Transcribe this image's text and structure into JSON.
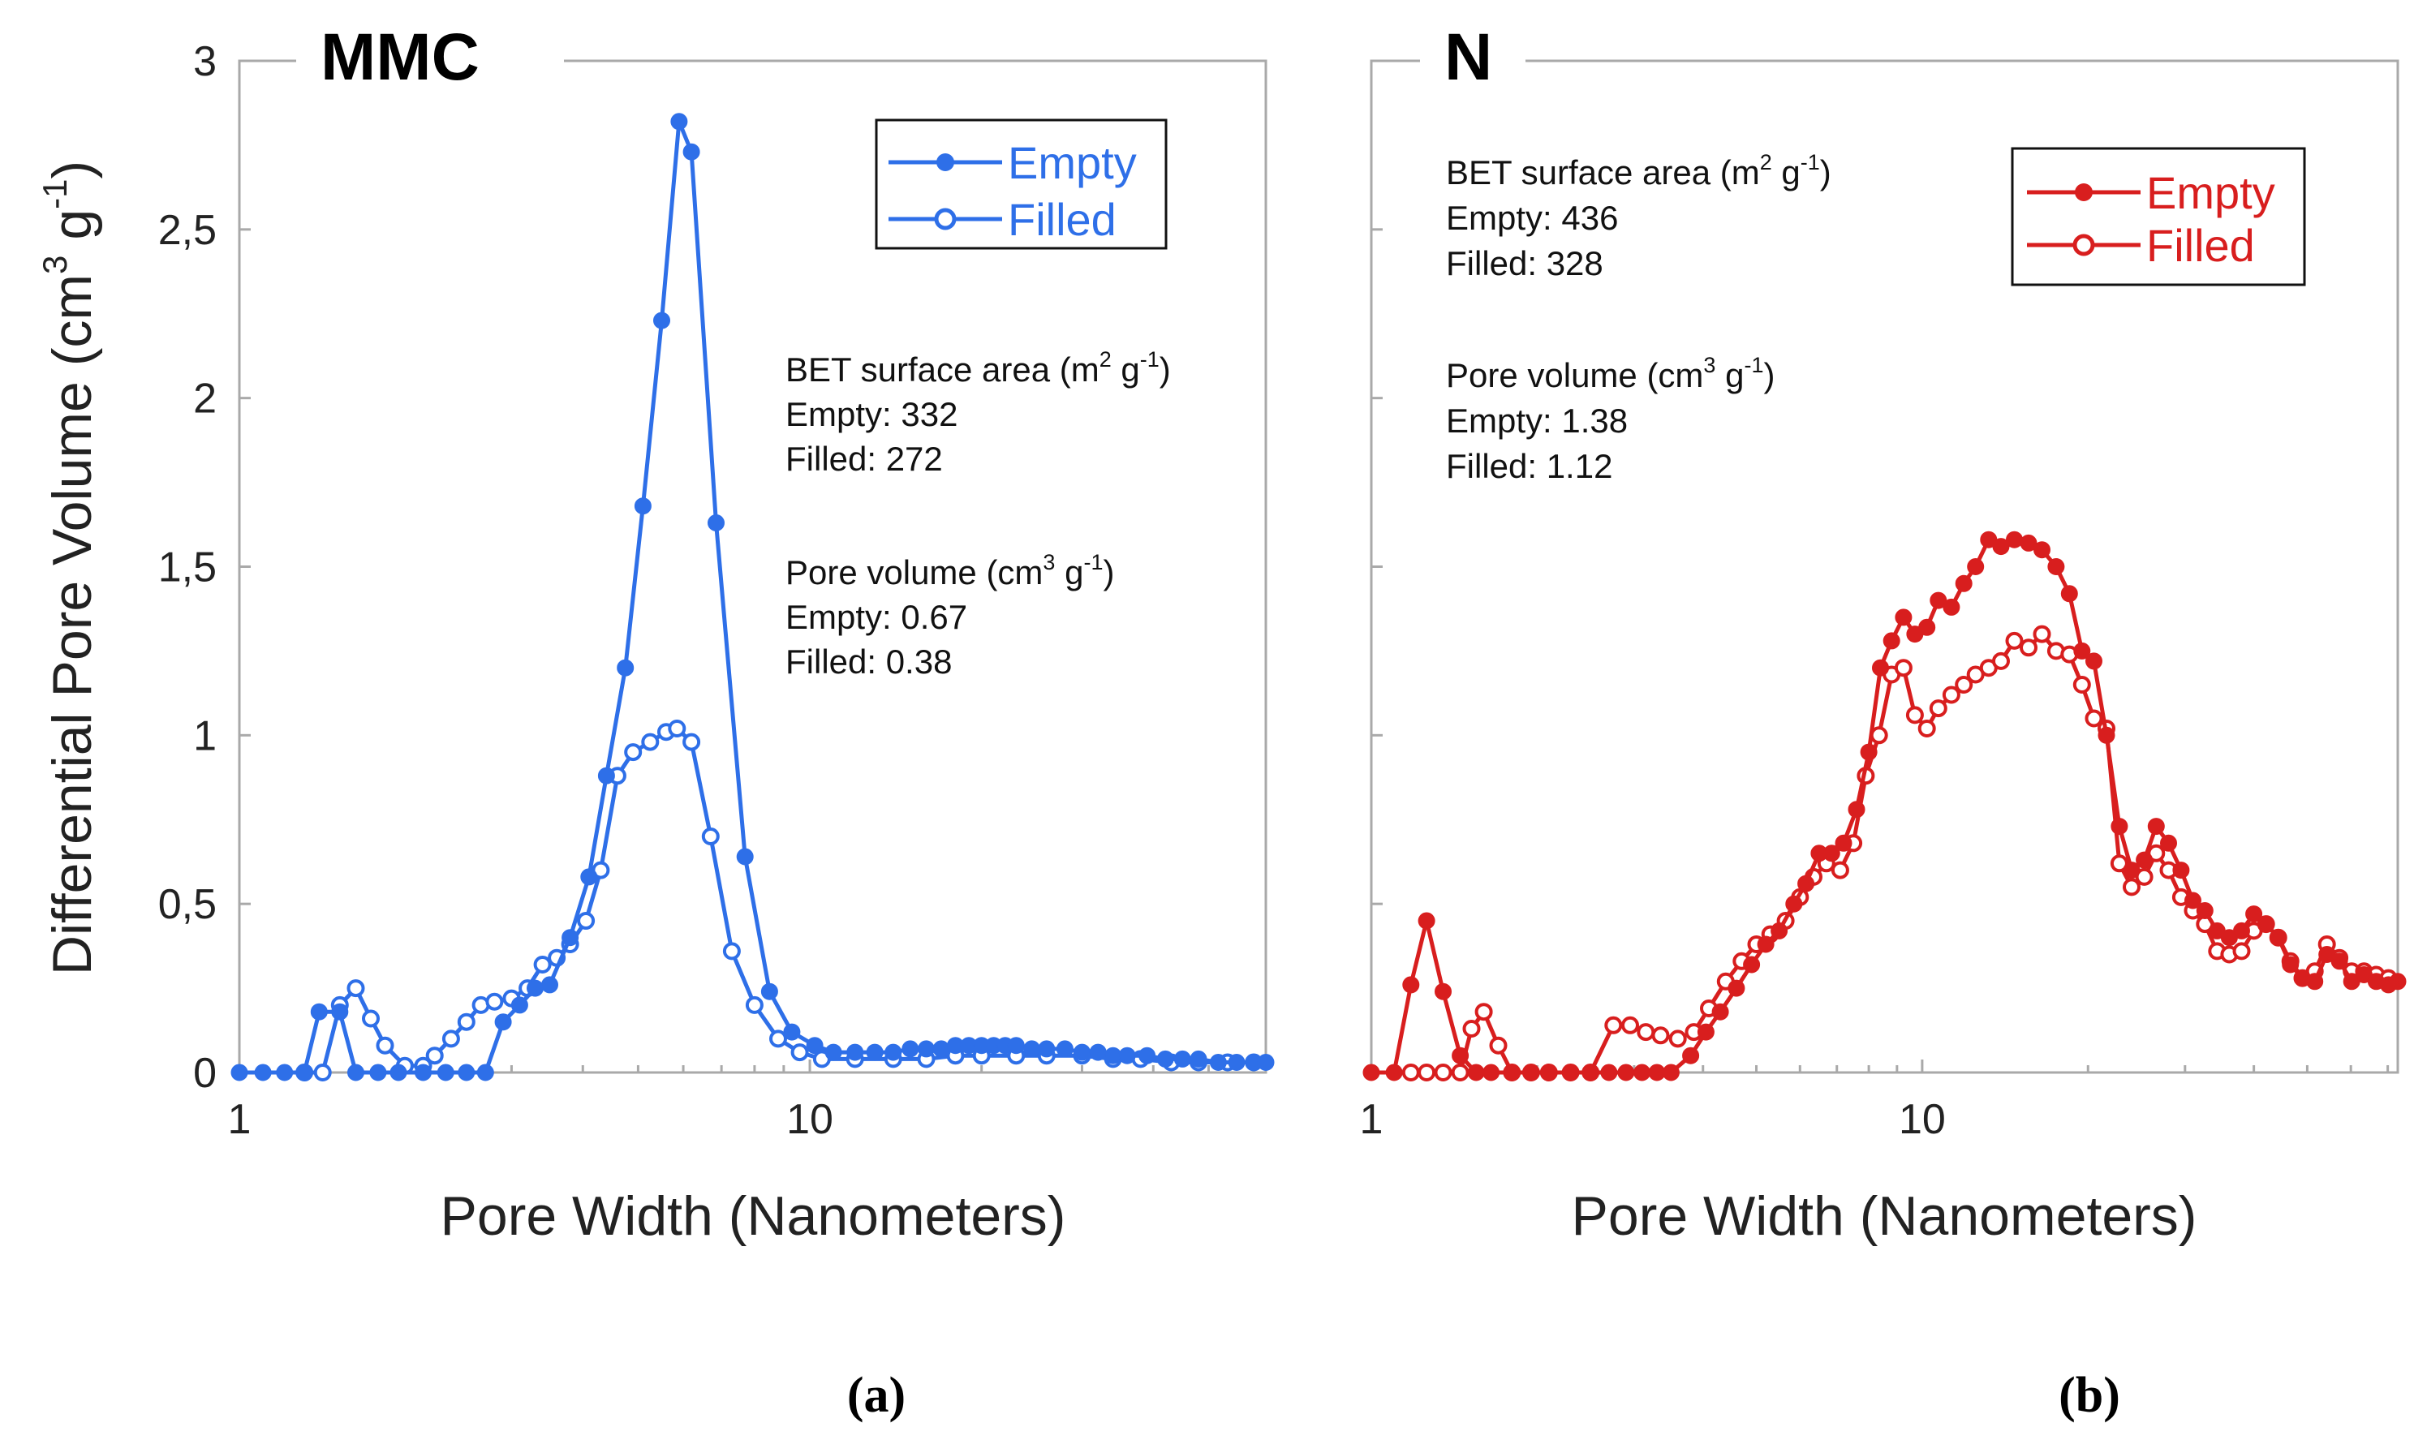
{
  "y_axis_label": "Differential Pore Volume (cm",
  "y_axis_label_sup1": "3",
  "y_axis_label_mid": " g",
  "y_axis_label_sup2": "-1",
  "y_axis_label_end": ")",
  "colors": {
    "a": "#2e6fe8",
    "b": "#d81e1e"
  },
  "chart_data": [
    {
      "type": "line",
      "panel_label": "MMC",
      "caption": "(a)",
      "xscale": "log",
      "xlim": [
        1,
        63
      ],
      "ylim": [
        0,
        3
      ],
      "xlabel": "Pore Width (Nanometers)",
      "ylabel": "Differential Pore Volume (cm3 g-1)",
      "xticks": [
        1,
        10
      ],
      "xtick_labels": [
        "1",
        "10"
      ],
      "yticks": [
        0,
        0.5,
        1,
        1.5,
        2,
        2.5,
        3
      ],
      "ytick_labels": [
        "0",
        "0,5",
        "1",
        "1,5",
        "2",
        "2,5",
        "3"
      ],
      "legend": {
        "position": "top-right",
        "entries": [
          "Empty",
          "Filled"
        ]
      },
      "annotations": {
        "bet_pre": "BET surface area (m",
        "bet_sup1": "2",
        "bet_mid": " g",
        "bet_sup2": "-1",
        "bet_end": ")",
        "bet_empty": "Empty: 332",
        "bet_filled": "Filled: 272",
        "pv_pre": "Pore volume (cm",
        "pv_sup1": "3",
        "pv_mid": " g",
        "pv_sup2": "-1",
        "pv_end": ")",
        "pv_empty": "Empty: 0.67",
        "pv_filled": "Filled: 0.38"
      },
      "series": [
        {
          "name": "Empty",
          "marker": "filled-circle",
          "points": [
            [
              1.0,
              0.0
            ],
            [
              1.1,
              0.0
            ],
            [
              1.2,
              0.0
            ],
            [
              1.3,
              0.0
            ],
            [
              1.38,
              0.18
            ],
            [
              1.5,
              0.18
            ],
            [
              1.6,
              0.0
            ],
            [
              1.75,
              0.0
            ],
            [
              1.9,
              0.0
            ],
            [
              2.1,
              0.0
            ],
            [
              2.3,
              0.0
            ],
            [
              2.5,
              0.0
            ],
            [
              2.7,
              0.0
            ],
            [
              2.9,
              0.15
            ],
            [
              3.1,
              0.2
            ],
            [
              3.3,
              0.25
            ],
            [
              3.5,
              0.26
            ],
            [
              3.8,
              0.4
            ],
            [
              4.1,
              0.58
            ],
            [
              4.4,
              0.88
            ],
            [
              4.75,
              1.2
            ],
            [
              5.1,
              1.68
            ],
            [
              5.5,
              2.23
            ],
            [
              5.9,
              2.82
            ],
            [
              6.2,
              2.73
            ],
            [
              6.85,
              1.63
            ],
            [
              7.7,
              0.64
            ],
            [
              8.5,
              0.24
            ],
            [
              9.3,
              0.12
            ],
            [
              10.2,
              0.08
            ],
            [
              11,
              0.06
            ],
            [
              12,
              0.06
            ],
            [
              13,
              0.06
            ],
            [
              14,
              0.06
            ],
            [
              15,
              0.07
            ],
            [
              16,
              0.07
            ],
            [
              17,
              0.07
            ],
            [
              18,
              0.08
            ],
            [
              19,
              0.08
            ],
            [
              20,
              0.08
            ],
            [
              21,
              0.08
            ],
            [
              22,
              0.08
            ],
            [
              23,
              0.08
            ],
            [
              24.5,
              0.07
            ],
            [
              26,
              0.07
            ],
            [
              28,
              0.07
            ],
            [
              30,
              0.06
            ],
            [
              32,
              0.06
            ],
            [
              34,
              0.05
            ],
            [
              36,
              0.05
            ],
            [
              39,
              0.05
            ],
            [
              42,
              0.04
            ],
            [
              45,
              0.04
            ],
            [
              48,
              0.04
            ],
            [
              52,
              0.03
            ],
            [
              56,
              0.03
            ],
            [
              60,
              0.03
            ],
            [
              63,
              0.03
            ]
          ]
        },
        {
          "name": "Filled",
          "marker": "open-circle",
          "points": [
            [
              1.3,
              0.0
            ],
            [
              1.4,
              0.0
            ],
            [
              1.5,
              0.2
            ],
            [
              1.6,
              0.25
            ],
            [
              1.7,
              0.16
            ],
            [
              1.8,
              0.08
            ],
            [
              1.95,
              0.02
            ],
            [
              2.1,
              0.02
            ],
            [
              2.2,
              0.05
            ],
            [
              2.35,
              0.1
            ],
            [
              2.5,
              0.15
            ],
            [
              2.65,
              0.2
            ],
            [
              2.8,
              0.21
            ],
            [
              3.0,
              0.22
            ],
            [
              3.2,
              0.25
            ],
            [
              3.4,
              0.32
            ],
            [
              3.6,
              0.34
            ],
            [
              3.8,
              0.38
            ],
            [
              4.05,
              0.45
            ],
            [
              4.3,
              0.6
            ],
            [
              4.6,
              0.88
            ],
            [
              4.9,
              0.95
            ],
            [
              5.25,
              0.98
            ],
            [
              5.6,
              1.01
            ],
            [
              5.85,
              1.02
            ],
            [
              6.2,
              0.98
            ],
            [
              6.7,
              0.7
            ],
            [
              7.3,
              0.36
            ],
            [
              8.0,
              0.2
            ],
            [
              8.8,
              0.1
            ],
            [
              9.6,
              0.06
            ],
            [
              10.5,
              0.04
            ],
            [
              12,
              0.04
            ],
            [
              14,
              0.04
            ],
            [
              16,
              0.04
            ],
            [
              18,
              0.05
            ],
            [
              20,
              0.05
            ],
            [
              23,
              0.05
            ],
            [
              26,
              0.05
            ],
            [
              30,
              0.05
            ],
            [
              34,
              0.04
            ],
            [
              38,
              0.04
            ],
            [
              43,
              0.03
            ],
            [
              48,
              0.03
            ],
            [
              54,
              0.03
            ],
            [
              60,
              0.03
            ]
          ]
        }
      ]
    },
    {
      "type": "line",
      "panel_label": "N",
      "caption": "(b)",
      "xscale": "log",
      "xlim": [
        1,
        73
      ],
      "ylim": [
        0,
        3
      ],
      "xlabel": "Pore Width (Nanometers)",
      "xticks": [
        1,
        10
      ],
      "xtick_labels": [
        "1",
        "10"
      ],
      "yticks": [
        0,
        0.5,
        1,
        1.5,
        2,
        2.5,
        3
      ],
      "legend": {
        "position": "top-right",
        "entries": [
          "Empty",
          "Filled"
        ]
      },
      "annotations": {
        "bet_pre": "BET surface area (m",
        "bet_sup1": "2",
        "bet_mid": " g",
        "bet_sup2": "-1",
        "bet_end": ")",
        "bet_empty": "Empty: 436",
        "bet_filled": "Filled: 328",
        "pv_pre": "Pore volume (cm",
        "pv_sup1": "3",
        "pv_mid": " g",
        "pv_sup2": "-1",
        "pv_end": ")",
        "pv_empty": "Empty: 1.38",
        "pv_filled": "Filled: 1.12"
      },
      "series": [
        {
          "name": "Empty",
          "marker": "filled-circle",
          "points": [
            [
              1.0,
              0.0
            ],
            [
              1.1,
              0.0
            ],
            [
              1.18,
              0.26
            ],
            [
              1.26,
              0.45
            ],
            [
              1.35,
              0.24
            ],
            [
              1.45,
              0.05
            ],
            [
              1.55,
              0.0
            ],
            [
              1.65,
              0.0
            ],
            [
              1.8,
              0.0
            ],
            [
              1.95,
              0.0
            ],
            [
              2.1,
              0.0
            ],
            [
              2.3,
              0.0
            ],
            [
              2.5,
              0.0
            ],
            [
              2.7,
              0.0
            ],
            [
              2.9,
              0.0
            ],
            [
              3.1,
              0.0
            ],
            [
              3.3,
              0.0
            ],
            [
              3.5,
              0.0
            ],
            [
              3.8,
              0.05
            ],
            [
              4.05,
              0.12
            ],
            [
              4.3,
              0.18
            ],
            [
              4.6,
              0.25
            ],
            [
              4.9,
              0.32
            ],
            [
              5.2,
              0.38
            ],
            [
              5.5,
              0.42
            ],
            [
              5.85,
              0.5
            ],
            [
              6.15,
              0.56
            ],
            [
              6.5,
              0.65
            ],
            [
              6.85,
              0.65
            ],
            [
              7.2,
              0.68
            ],
            [
              7.6,
              0.78
            ],
            [
              8.0,
              0.95
            ],
            [
              8.4,
              1.2
            ],
            [
              8.8,
              1.28
            ],
            [
              9.25,
              1.35
            ],
            [
              9.7,
              1.3
            ],
            [
              10.2,
              1.32
            ],
            [
              10.7,
              1.4
            ],
            [
              11.3,
              1.38
            ],
            [
              11.9,
              1.45
            ],
            [
              12.5,
              1.5
            ],
            [
              13.2,
              1.58
            ],
            [
              13.9,
              1.56
            ],
            [
              14.7,
              1.58
            ],
            [
              15.6,
              1.57
            ],
            [
              16.5,
              1.55
            ],
            [
              17.5,
              1.5
            ],
            [
              18.5,
              1.42
            ],
            [
              19.5,
              1.25
            ],
            [
              20.5,
              1.22
            ],
            [
              21.6,
              1.0
            ],
            [
              22.8,
              0.73
            ],
            [
              24.0,
              0.6
            ],
            [
              25.3,
              0.63
            ],
            [
              26.6,
              0.73
            ],
            [
              28.0,
              0.68
            ],
            [
              29.5,
              0.6
            ],
            [
              31.0,
              0.51
            ],
            [
              32.6,
              0.48
            ],
            [
              34.3,
              0.42
            ],
            [
              36.1,
              0.4
            ],
            [
              38.0,
              0.42
            ],
            [
              40.0,
              0.47
            ],
            [
              42.1,
              0.44
            ],
            [
              44.3,
              0.4
            ],
            [
              46.6,
              0.32
            ],
            [
              49.0,
              0.28
            ],
            [
              51.6,
              0.27
            ],
            [
              54.3,
              0.35
            ],
            [
              57.2,
              0.33
            ],
            [
              60.2,
              0.27
            ],
            [
              63.4,
              0.29
            ],
            [
              66.7,
              0.27
            ],
            [
              70.2,
              0.26
            ],
            [
              73,
              0.27
            ]
          ]
        },
        {
          "name": "Filled",
          "marker": "open-circle",
          "points": [
            [
              1.18,
              0.0
            ],
            [
              1.26,
              0.0
            ],
            [
              1.35,
              0.0
            ],
            [
              1.45,
              0.0
            ],
            [
              1.52,
              0.13
            ],
            [
              1.6,
              0.18
            ],
            [
              1.7,
              0.08
            ],
            [
              1.8,
              0.0
            ],
            [
              1.95,
              0.0
            ],
            [
              2.1,
              0.0
            ],
            [
              2.3,
              0.0
            ],
            [
              2.5,
              0.0
            ],
            [
              2.75,
              0.14
            ],
            [
              2.95,
              0.14
            ],
            [
              3.15,
              0.12
            ],
            [
              3.35,
              0.11
            ],
            [
              3.6,
              0.1
            ],
            [
              3.85,
              0.12
            ],
            [
              4.1,
              0.19
            ],
            [
              4.4,
              0.27
            ],
            [
              4.7,
              0.33
            ],
            [
              5.0,
              0.38
            ],
            [
              5.3,
              0.41
            ],
            [
              5.65,
              0.45
            ],
            [
              6.0,
              0.52
            ],
            [
              6.35,
              0.58
            ],
            [
              6.7,
              0.62
            ],
            [
              7.1,
              0.6
            ],
            [
              7.5,
              0.68
            ],
            [
              7.9,
              0.88
            ],
            [
              8.35,
              1.0
            ],
            [
              8.8,
              1.18
            ],
            [
              9.25,
              1.2
            ],
            [
              9.7,
              1.06
            ],
            [
              10.2,
              1.02
            ],
            [
              10.7,
              1.08
            ],
            [
              11.3,
              1.12
            ],
            [
              11.9,
              1.15
            ],
            [
              12.5,
              1.18
            ],
            [
              13.2,
              1.2
            ],
            [
              13.9,
              1.22
            ],
            [
              14.7,
              1.28
            ],
            [
              15.6,
              1.26
            ],
            [
              16.5,
              1.3
            ],
            [
              17.5,
              1.25
            ],
            [
              18.5,
              1.24
            ],
            [
              19.5,
              1.15
            ],
            [
              20.5,
              1.05
            ],
            [
              21.6,
              1.02
            ],
            [
              22.8,
              0.62
            ],
            [
              24.0,
              0.55
            ],
            [
              25.3,
              0.58
            ],
            [
              26.6,
              0.65
            ],
            [
              28.0,
              0.6
            ],
            [
              29.5,
              0.52
            ],
            [
              31.0,
              0.48
            ],
            [
              32.6,
              0.44
            ],
            [
              34.3,
              0.36
            ],
            [
              36.1,
              0.35
            ],
            [
              38.0,
              0.36
            ],
            [
              40.0,
              0.42
            ],
            [
              42.1,
              0.44
            ],
            [
              44.3,
              0.4
            ],
            [
              46.6,
              0.33
            ],
            [
              49.0,
              0.28
            ],
            [
              51.6,
              0.3
            ],
            [
              54.3,
              0.38
            ],
            [
              57.2,
              0.34
            ],
            [
              60.2,
              0.3
            ],
            [
              63.4,
              0.3
            ],
            [
              66.7,
              0.29
            ],
            [
              70.2,
              0.28
            ]
          ]
        }
      ]
    }
  ]
}
